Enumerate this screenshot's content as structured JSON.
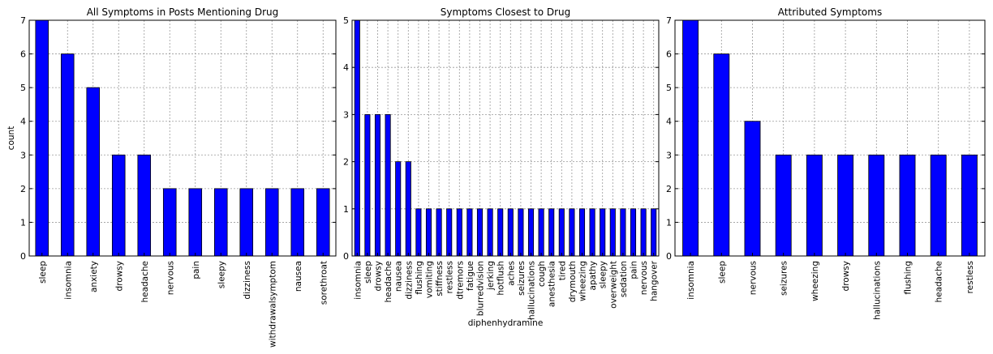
{
  "chart_data": [
    {
      "type": "bar",
      "title": "All Symptoms in Posts Mentioning Drug",
      "xlabel": "",
      "ylabel": "count",
      "ylim": [
        0,
        7
      ],
      "yticks": [
        0,
        1,
        2,
        3,
        4,
        5,
        6,
        7
      ],
      "grid": true,
      "legend": "none",
      "bar_color": "#0000ff",
      "categories": [
        "sleep",
        "insomnia",
        "anxiety",
        "drowsy",
        "headache",
        "nervous",
        "pain",
        "sleepy",
        "dizziness",
        "withdrawalsymptom",
        "nausea",
        "sorethroat"
      ],
      "values": [
        7,
        6,
        5,
        3,
        3,
        2,
        2,
        2,
        2,
        2,
        2,
        2
      ]
    },
    {
      "type": "bar",
      "title": "Symptoms Closest to Drug",
      "xlabel": "diphenhydramine",
      "ylabel": "",
      "ylim": [
        0,
        5
      ],
      "yticks": [
        0,
        1,
        2,
        3,
        4,
        5
      ],
      "grid": true,
      "legend": "none",
      "bar_color": "#0000ff",
      "categories": [
        "insomnia",
        "sleep",
        "drowsy",
        "headache",
        "nausea",
        "dizziness",
        "flushing",
        "vomiting",
        "stiffness",
        "restless",
        "dtremors",
        "fatigue",
        "blurredvision",
        "jerking",
        "hotflush",
        "aches",
        "seizures",
        "hallucinations",
        "cough",
        "anesthesia",
        "tired",
        "drymouth",
        "wheezing",
        "apathy",
        "sleepy",
        "overweight",
        "sedation",
        "pain",
        "nervous",
        "hangover"
      ],
      "values": [
        5,
        3,
        3,
        3,
        2,
        2,
        1,
        1,
        1,
        1,
        1,
        1,
        1,
        1,
        1,
        1,
        1,
        1,
        1,
        1,
        1,
        1,
        1,
        1,
        1,
        1,
        1,
        1,
        1,
        1
      ]
    },
    {
      "type": "bar",
      "title": "Attributed Symptoms",
      "xlabel": "",
      "ylabel": "",
      "ylim": [
        0,
        7
      ],
      "yticks": [
        0,
        1,
        2,
        3,
        4,
        5,
        6,
        7
      ],
      "grid": true,
      "legend": "none",
      "bar_color": "#0000ff",
      "categories": [
        "insomnia",
        "sleep",
        "nervous",
        "seizures",
        "wheezing",
        "drowsy",
        "hallucinations",
        "flushing",
        "headache",
        "restless"
      ],
      "values": [
        7,
        6,
        4,
        3,
        3,
        3,
        3,
        3,
        3,
        3
      ]
    }
  ]
}
